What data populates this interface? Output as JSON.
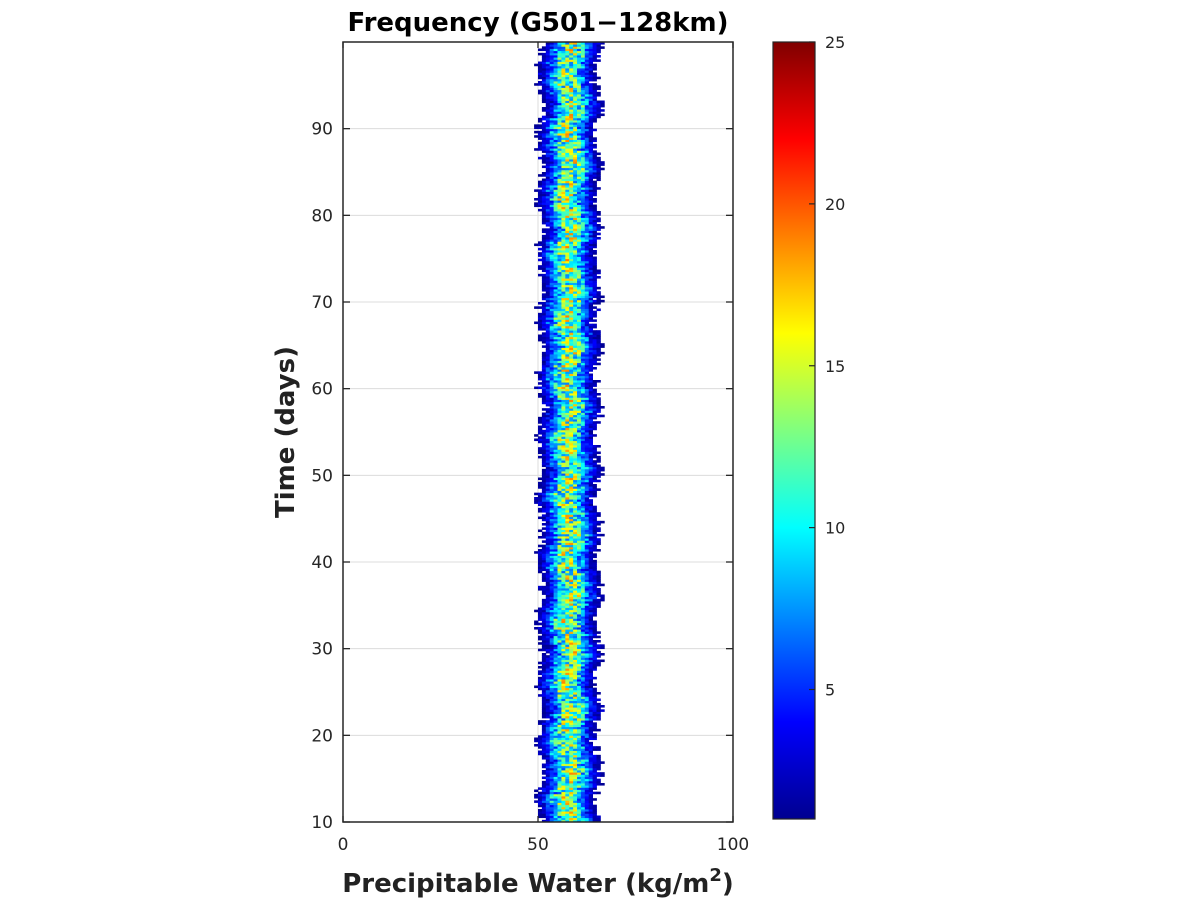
{
  "chart_data": {
    "type": "heatmap",
    "title": "Frequency (G501−128km)",
    "xlabel": "Precipitable Water (kg/m",
    "xlabel_superscript": "2",
    "xlabel_suffix": ")",
    "ylabel": "Time (days)",
    "xlim": [
      0,
      100
    ],
    "ylim": [
      10,
      100
    ],
    "x_ticks": [
      "0",
      "50",
      "100"
    ],
    "x_tick_values": [
      0,
      50,
      100
    ],
    "y_ticks": [
      "10",
      "20",
      "30",
      "40",
      "50",
      "60",
      "70",
      "80",
      "90"
    ],
    "y_tick_values": [
      10,
      20,
      30,
      40,
      50,
      60,
      70,
      80,
      90
    ],
    "grid": true,
    "colormap": "jet",
    "colorbar": {
      "clim": [
        1,
        25
      ],
      "ticks": [
        "5",
        "10",
        "15",
        "20",
        "25"
      ],
      "tick_values": [
        5,
        10,
        15,
        20,
        25
      ]
    },
    "distribution": {
      "x_center": 57.5,
      "x_spread": 3.5,
      "x_min_extent": 50,
      "x_max_extent": 65,
      "peak_frequency": 16,
      "time_step_days": 0.25
    }
  }
}
